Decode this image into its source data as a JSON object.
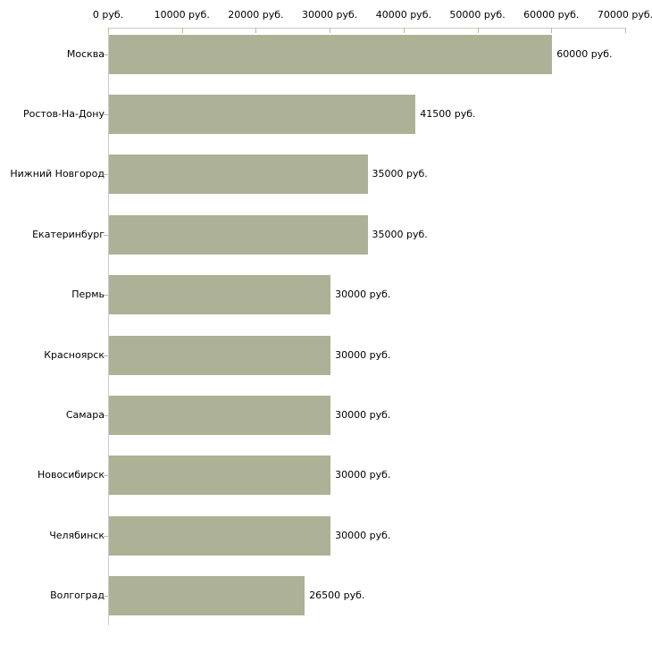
{
  "chart_data": {
    "type": "bar",
    "orientation": "horizontal",
    "categories": [
      "Москва",
      "Ростов-На-Дону",
      "Нижний Новгород",
      "Екатеринбург",
      "Пермь",
      "Красноярск",
      "Самара",
      "Новосибирск",
      "Челябинск",
      "Волгоград"
    ],
    "values": [
      60000,
      41500,
      35000,
      35000,
      30000,
      30000,
      30000,
      30000,
      30000,
      26500
    ],
    "value_labels": [
      "60000 руб.",
      "41500 руб.",
      "35000 руб.",
      "35000 руб.",
      "30000 руб.",
      "30000 руб.",
      "30000 руб.",
      "30000 руб.",
      "30000 руб.",
      "26500 руб."
    ],
    "unit": "руб.",
    "xlim": [
      0,
      70000
    ],
    "x_tick_values": [
      0,
      10000,
      20000,
      30000,
      40000,
      50000,
      60000,
      70000
    ],
    "x_tick_labels": [
      "0 руб.",
      "10000 руб.",
      "20000 руб.",
      "30000 руб.",
      "40000 руб.",
      "50000 руб.",
      "60000 руб.",
      "70000 руб."
    ],
    "grid": false,
    "legend": false,
    "colors": {
      "bar": "#adb196",
      "axis": "#cccccc",
      "tick": "#b9bd92",
      "text": "#000000",
      "background": "#ffffff"
    }
  }
}
